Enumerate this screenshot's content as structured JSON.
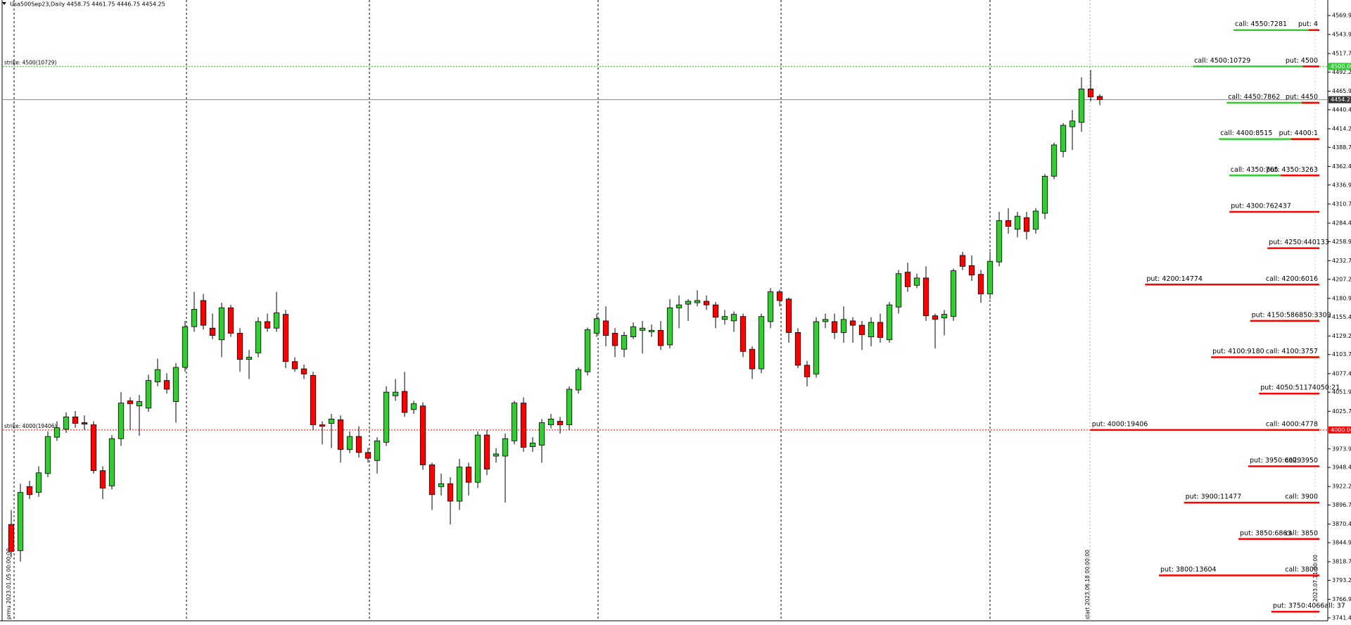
{
  "chart_data": {
    "type": "candlestick",
    "title": "Usa500Sep23,Daily  4458.75 4461.75 4446.75 4454.25",
    "up_color": "#33cc33",
    "down_color": "#ff0000",
    "open": [
      3870,
      3834,
      3922,
      3914,
      3940,
      3990,
      4001,
      4018,
      4010,
      4007,
      3944,
      3923,
      3988,
      4040,
      4033,
      4030,
      4066,
      4068,
      4039,
      4086,
      4142,
      4178,
      4140,
      4124,
      4168,
      4133,
      4097,
      4106,
      4149,
      4140,
      4159,
      4094,
      4084,
      4075,
      4007,
      4009,
      4014,
      3973,
      3991,
      3969,
      3958,
      3983,
      4047,
      4053,
      4028,
      4033,
      3952,
      3922,
      3926,
      3902,
      3949,
      3928,
      3993,
      3964,
      3964,
      3985,
      4037,
      3977,
      3979,
      4007,
      4012,
      4007,
      4055,
      4080,
      4133,
      4150,
      4133,
      4111,
      4128,
      4137,
      4135,
      4137,
      4117,
      4168,
      4173,
      4175,
      4177,
      4172,
      4152,
      4150,
      4156,
      4111,
      4084,
      4149,
      4190,
      4180,
      4134,
      4089,
      4077,
      4149,
      4149,
      4134,
      4150,
      4144,
      4128,
      4148,
      4124,
      4169,
      4217,
      4199,
      4209,
      4157,
      4154,
      4156,
      4240,
      4226,
      4214,
      4187,
      4231,
      4288,
      4276,
      4292,
      4276,
      4298,
      4349,
      4383,
      4417,
      4423,
      4469,
      4458.75
    ],
    "high": [
      3890,
      3926,
      3930,
      3950,
      3998,
      4012,
      4024,
      4026,
      4020,
      4012,
      3950,
      3993,
      4052,
      4045,
      4048,
      4076,
      4098,
      4078,
      4092,
      4150,
      4190,
      4187,
      4160,
      4175,
      4172,
      4140,
      4110,
      4155,
      4160,
      4190,
      4165,
      4100,
      4090,
      4080,
      4012,
      4022,
      4020,
      3998,
      4005,
      3975,
      3990,
      4060,
      4070,
      4080,
      4040,
      4038,
      3955,
      3940,
      3935,
      3960,
      3955,
      3998,
      4000,
      3975,
      3995,
      4040,
      4045,
      3990,
      4015,
      4022,
      4018,
      4060,
      4086,
      4141,
      4160,
      4170,
      4140,
      4135,
      4148,
      4150,
      4145,
      4150,
      4180,
      4185,
      4180,
      4192,
      4185,
      4176,
      4165,
      4163,
      4160,
      4115,
      4160,
      4195,
      4193,
      4182,
      4140,
      4095,
      4155,
      4160,
      4160,
      4170,
      4155,
      4150,
      4155,
      4160,
      4176,
      4220,
      4230,
      4215,
      4225,
      4160,
      4165,
      4222,
      4245,
      4240,
      4220,
      4245,
      4300,
      4305,
      4300,
      4300,
      4305,
      4352,
      4395,
      4422,
      4440,
      4485,
      4495,
      4461.75
    ],
    "low": [
      3825,
      3819,
      3905,
      3908,
      3935,
      3985,
      3996,
      4003,
      4000,
      3940,
      3905,
      3918,
      3978,
      4000,
      3992,
      4025,
      4060,
      4050,
      4010,
      4080,
      4135,
      4138,
      4125,
      4100,
      4128,
      4080,
      4070,
      4100,
      4135,
      4135,
      4085,
      4080,
      4070,
      4000,
      3980,
      3975,
      3955,
      3968,
      3962,
      3955,
      3940,
      3978,
      4040,
      4018,
      4022,
      3945,
      3890,
      3910,
      3870,
      3890,
      3910,
      3920,
      3938,
      3955,
      3900,
      3980,
      3970,
      3970,
      3955,
      4002,
      3995,
      4000,
      4050,
      4075,
      4128,
      4115,
      4100,
      4100,
      4125,
      4105,
      4128,
      4110,
      4112,
      4140,
      4150,
      4170,
      4165,
      4140,
      4145,
      4135,
      4100,
      4070,
      4078,
      4140,
      4170,
      4120,
      4085,
      4060,
      4072,
      4140,
      4125,
      4120,
      4120,
      4110,
      4115,
      4120,
      4120,
      4160,
      4190,
      4195,
      4150,
      4112,
      4130,
      4150,
      4220,
      4205,
      4175,
      4180,
      4225,
      4270,
      4265,
      4262,
      4270,
      4290,
      4345,
      4375,
      4385,
      4410,
      4452,
      4446.75
    ],
    "close": [
      3833,
      3914,
      3911,
      3941,
      3991,
      4003,
      4018,
      4009,
      4008,
      3944,
      3920,
      3988,
      4037,
      4036,
      4039,
      4068,
      4083,
      4056,
      4086,
      4142,
      4166,
      4144,
      4130,
      4168,
      4133,
      4097,
      4100,
      4149,
      4140,
      4161,
      4094,
      4084,
      4077,
      4007,
      4005,
      4015,
      3973,
      3991,
      3969,
      3961,
      3985,
      4052,
      4052,
      4024,
      4036,
      3952,
      3911,
      3926,
      3902,
      3949,
      3928,
      3993,
      3946,
      3967,
      3988,
      4037,
      3976,
      3982,
      4010,
      4015,
      4007,
      4056,
      4083,
      4138,
      4153,
      4130,
      4116,
      4130,
      4142,
      4140,
      4137,
      4116,
      4168,
      4172,
      4177,
      4178,
      4172,
      4155,
      4156,
      4159,
      4108,
      4084,
      4156,
      4190,
      4178,
      4134,
      4089,
      4073,
      4149,
      4152,
      4134,
      4152,
      4144,
      4131,
      4148,
      4127,
      4172,
      4215,
      4197,
      4209,
      4157,
      4152,
      4159,
      4219,
      4225,
      4213,
      4187,
      4232,
      4288,
      4280,
      4294,
      4273,
      4301,
      4349,
      4392,
      4419,
      4425,
      4469,
      4458,
      4454.25
    ],
    "price_label": "4454.25",
    "ylim": [
      3737.5,
      4591.35
    ],
    "yticks": [
      {
        "value": 4569.95,
        "label": "4569.95"
      },
      {
        "value": 4543.95,
        "label": "4543.95"
      },
      {
        "value": 4517.7,
        "label": "4517.70"
      },
      {
        "value": 4492.2,
        "label": "4492.20"
      },
      {
        "value": 4465.95,
        "label": "4465.95"
      },
      {
        "value": 4440.45,
        "label": "4440.45"
      },
      {
        "value": 4414.2,
        "label": "4414.20"
      },
      {
        "value": 4388.7,
        "label": "4388.70"
      },
      {
        "value": 4362.45,
        "label": "4362.45"
      },
      {
        "value": 4336.95,
        "label": "4336.95"
      },
      {
        "value": 4310.7,
        "label": "4310.70"
      },
      {
        "value": 4284.45,
        "label": "4284.45"
      },
      {
        "value": 4258.95,
        "label": "4258.95"
      },
      {
        "value": 4232.7,
        "label": "4232.70"
      },
      {
        "value": 4207.2,
        "label": "4207.20"
      },
      {
        "value": 4180.95,
        "label": "4180.95"
      },
      {
        "value": 4155.45,
        "label": "4155.45"
      },
      {
        "value": 4129.2,
        "label": "4129.20"
      },
      {
        "value": 4103.7,
        "label": "4103.70"
      },
      {
        "value": 4077.45,
        "label": "4077.45"
      },
      {
        "value": 4051.95,
        "label": "4051.95"
      },
      {
        "value": 4025.7,
        "label": "4025.70"
      },
      {
        "value": 3973.95,
        "label": "3973.95"
      },
      {
        "value": 3948.45,
        "label": "3948.45"
      },
      {
        "value": 3922.2,
        "label": "3922.20"
      },
      {
        "value": 3896.7,
        "label": "3896.70"
      },
      {
        "value": 3870.45,
        "label": "3870.45"
      },
      {
        "value": 3844.95,
        "label": "3844.95"
      },
      {
        "value": 3818.7,
        "label": "3818.70"
      },
      {
        "value": 3793.2,
        "label": "3793.20"
      },
      {
        "value": 3766.95,
        "label": "3766.95"
      },
      {
        "value": 3741.45,
        "label": "3741.45"
      }
    ],
    "strikes": [
      {
        "label": "strike: 4500(10729)",
        "value": 4500,
        "axis_label": "4500.00",
        "color": "#33cc33"
      },
      {
        "label": "strike: 4000(19406)",
        "value": 4000,
        "axis_label": "4000.00",
        "color": "#ff0000"
      }
    ],
    "level_colors": {
      "call": "#33cc33",
      "put": "#ff0000"
    },
    "levels": [
      {
        "strike": 4550,
        "texts": [
          "call: 4550:7281",
          "put: 4"
        ],
        "call": 7281,
        "put": 900
      },
      {
        "strike": 4500,
        "texts": [
          "call: 4500:10729",
          "put: 4500"
        ],
        "call": 10729,
        "put": 1400
      },
      {
        "strike": 4450,
        "texts": [
          "call: 4450:7862",
          "put: 4450"
        ],
        "call": 7862,
        "put": 1500
      },
      {
        "strike": 4400,
        "texts": [
          "call: 4400:8515",
          "put: 4400:1"
        ],
        "call": 8515,
        "put": 2400
      },
      {
        "strike": 4350,
        "texts": [
          "call: 4350:765",
          "put: 4350:3263"
        ],
        "call": 7650,
        "put": 3263
      },
      {
        "strike": 4300,
        "texts": [
          "put: 4300:762437"
        ],
        "put": 7624
      },
      {
        "strike": 4250,
        "texts": [
          "put: 4250:440133"
        ],
        "put": 4401
      },
      {
        "strike": 4200,
        "texts": [
          "put: 4200:14774",
          "call: 4200:6016"
        ],
        "call": 6016,
        "put": 14774
      },
      {
        "strike": 4150,
        "texts": [
          "put: 4150:586850:3309"
        ],
        "call": 3309,
        "put": 5868
      },
      {
        "strike": 4100,
        "texts": [
          "put: 4100:9180",
          "call: 4100:3757"
        ],
        "call": 3757,
        "put": 9180
      },
      {
        "strike": 4050,
        "texts": [
          "put: 4050:51174050:21"
        ],
        "put": 5117
      },
      {
        "strike": 4000,
        "texts": [
          "put: 4000:19406",
          "call: 4000:4778"
        ],
        "call": 4778,
        "put": 19406
      },
      {
        "strike": 3950,
        "texts": [
          "put: 3950:6029",
          "call: 3950"
        ],
        "put": 6029
      },
      {
        "strike": 3900,
        "texts": [
          "put: 3900:11477",
          "call: 3900"
        ],
        "put": 11477
      },
      {
        "strike": 3850,
        "texts": [
          "put: 3850:6863",
          "call: 3850"
        ],
        "put": 6863
      },
      {
        "strike": 3800,
        "texts": [
          "put: 3800:13604",
          "call: 3800"
        ],
        "put": 13604
      },
      {
        "strike": 3750,
        "texts": [
          "put: 3750:4066all: 37"
        ],
        "put": 4066
      }
    ],
    "date_labels": [
      "prmu 2023.01.05 00:00:00",
      "start 2023.06.18 00:00:00",
      "2023.07.11 00:00"
    ]
  }
}
